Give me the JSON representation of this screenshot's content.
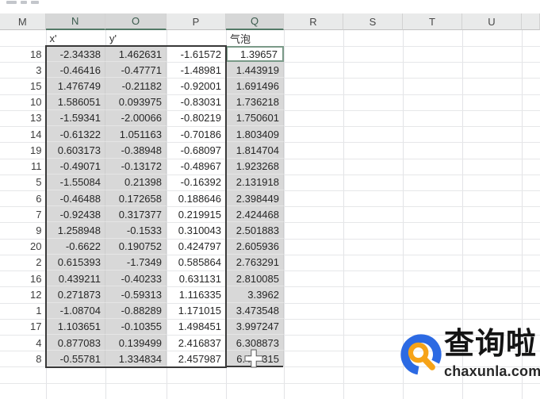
{
  "sheet": {
    "column_letters": [
      "M",
      "N",
      "O",
      "P",
      "Q",
      "R",
      "S",
      "T",
      "U",
      ""
    ],
    "selected_column_letters": [
      "N",
      "O",
      "Q"
    ],
    "field_labels": {
      "n": "x'",
      "o": "y'",
      "q": "气泡"
    },
    "columns": [
      "M",
      "x'",
      "y'",
      "P",
      "气泡"
    ],
    "rows": [
      [
        "18",
        "-2.34338",
        "1.462631",
        "-1.61572",
        "1.39657"
      ],
      [
        "3",
        "-0.46416",
        "-0.47771",
        "-1.48981",
        "1.443919"
      ],
      [
        "15",
        "1.476749",
        "-0.21182",
        "-0.92001",
        "1.691496"
      ],
      [
        "10",
        "1.586051",
        "0.093975",
        "-0.83031",
        "1.736218"
      ],
      [
        "13",
        "-1.59341",
        "-2.00066",
        "-0.80219",
        "1.750601"
      ],
      [
        "14",
        "-0.61322",
        "1.051163",
        "-0.70186",
        "1.803409"
      ],
      [
        "19",
        "0.603173",
        "-0.38948",
        "-0.68097",
        "1.814704"
      ],
      [
        "11",
        "-0.49071",
        "-0.13172",
        "-0.48967",
        "1.923268"
      ],
      [
        "5",
        "-1.55084",
        "0.21398",
        "-0.16392",
        "2.131918"
      ],
      [
        "6",
        "-0.46488",
        "0.172658",
        "0.188646",
        "2.398449"
      ],
      [
        "7",
        "-0.92438",
        "0.317377",
        "0.219915",
        "2.424468"
      ],
      [
        "9",
        "1.258948",
        "-0.1533",
        "0.310043",
        "2.501883"
      ],
      [
        "20",
        "-0.6622",
        "0.190752",
        "0.424797",
        "2.605936"
      ],
      [
        "2",
        "0.615393",
        "-1.7349",
        "0.585864",
        "2.763291"
      ],
      [
        "16",
        "0.439211",
        "-0.40233",
        "0.631131",
        "2.810085"
      ],
      [
        "12",
        "0.271873",
        "-0.59313",
        "1.116335",
        "3.3962"
      ],
      [
        "1",
        "-1.08704",
        "-0.88289",
        "1.171015",
        "3.473548"
      ],
      [
        "17",
        "1.103651",
        "-0.10355",
        "1.498451",
        "3.997247"
      ],
      [
        "4",
        "0.877083",
        "0.139499",
        "2.416837",
        "6.308873"
      ],
      [
        "8",
        "-0.55781",
        "1.334834",
        "2.457987",
        [
          "6.4",
          "315"
        ]
      ]
    ],
    "active_cell_value": "1.39657",
    "colors": {
      "selection_fill": "#d8d8d8",
      "selected_header_underline": "#537a66",
      "range_border": "#383838",
      "active_cell_border": "#7a9a88"
    }
  },
  "watermark": {
    "brand": "查询啦",
    "domain": "chaxunla.com",
    "logo_blue": "#2c6ae3",
    "logo_orange": "#f6a318"
  }
}
